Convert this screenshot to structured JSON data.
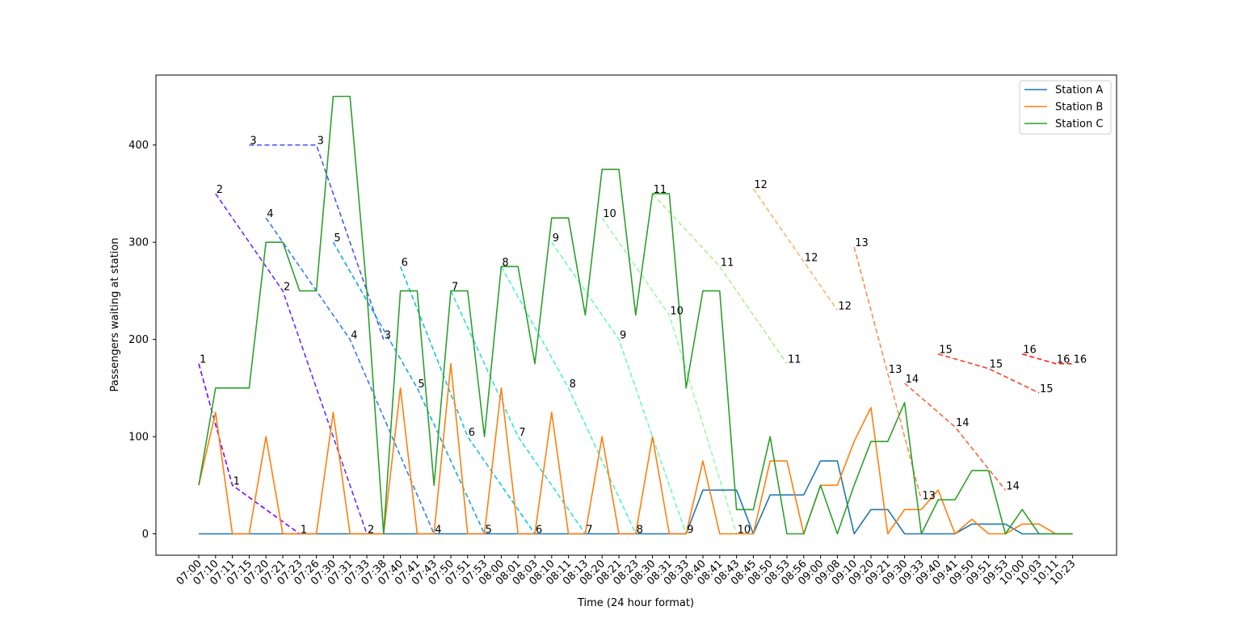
{
  "chart_data": {
    "type": "line",
    "xlabel": "Time (24 hour format)",
    "ylabel": "Passengers waiting at station",
    "ylim": [
      -22,
      472
    ],
    "y_ticks": [
      0,
      100,
      200,
      300,
      400
    ],
    "categories": [
      "07:00",
      "07:10",
      "07:11",
      "07:15",
      "07:20",
      "07:21",
      "07:23",
      "07:26",
      "07:30",
      "07:31",
      "07:33",
      "07:38",
      "07:40",
      "07:41",
      "07:43",
      "07:50",
      "07:51",
      "07:53",
      "08:00",
      "08:01",
      "08:03",
      "08:10",
      "08:11",
      "08:13",
      "08:20",
      "08:21",
      "08:23",
      "08:30",
      "08:31",
      "08:33",
      "08:40",
      "08:41",
      "08:43",
      "08:45",
      "08:50",
      "08:53",
      "08:56",
      "09:00",
      "09:08",
      "09:10",
      "09:20",
      "09:21",
      "09:30",
      "09:33",
      "09:40",
      "09:41",
      "09:50",
      "09:51",
      "09:53",
      "10:00",
      "10:03",
      "10:11",
      "10:23"
    ],
    "legend_position": "top-right",
    "grid": false,
    "series": [
      {
        "name": "Station A",
        "color": "#1f77b4",
        "values": [
          0,
          0,
          0,
          0,
          0,
          0,
          0,
          0,
          0,
          0,
          0,
          0,
          0,
          0,
          0,
          0,
          0,
          0,
          0,
          0,
          0,
          0,
          0,
          0,
          0,
          0,
          0,
          0,
          0,
          0,
          45,
          45,
          45,
          0,
          40,
          40,
          40,
          75,
          75,
          0,
          25,
          25,
          0,
          0,
          0,
          0,
          10,
          10,
          10,
          0,
          0,
          0,
          0
        ]
      },
      {
        "name": "Station B",
        "color": "#ff7f0e",
        "values": [
          50,
          125,
          0,
          0,
          100,
          0,
          0,
          0,
          125,
          0,
          0,
          0,
          150,
          0,
          0,
          175,
          0,
          0,
          150,
          0,
          0,
          125,
          0,
          0,
          100,
          0,
          0,
          100,
          0,
          0,
          75,
          0,
          0,
          0,
          75,
          75,
          0,
          50,
          50,
          95,
          130,
          0,
          25,
          25,
          45,
          0,
          15,
          0,
          0,
          10,
          10,
          0,
          0
        ]
      },
      {
        "name": "Station C",
        "color": "#2ca02c",
        "values": [
          50,
          150,
          150,
          150,
          300,
          300,
          250,
          250,
          450,
          450,
          250,
          0,
          250,
          250,
          50,
          250,
          250,
          100,
          275,
          275,
          175,
          325,
          325,
          225,
          375,
          375,
          225,
          350,
          350,
          150,
          250,
          250,
          25,
          25,
          100,
          0,
          0,
          50,
          0,
          50,
          95,
          95,
          135,
          0,
          35,
          35,
          65,
          65,
          0,
          25,
          0,
          0,
          0
        ]
      }
    ],
    "trains": [
      {
        "id": "1",
        "color": "#7f00ff",
        "points": [
          [
            0,
            175,
            "1"
          ],
          [
            2,
            50,
            "1"
          ],
          [
            6,
            0,
            "1"
          ]
        ]
      },
      {
        "id": "2",
        "color": "#6a2cfe",
        "points": [
          [
            1,
            350,
            "2"
          ],
          [
            5,
            250,
            "2"
          ],
          [
            10,
            0,
            "2"
          ]
        ]
      },
      {
        "id": "3",
        "color": "#4a57fb",
        "points": [
          [
            3,
            400,
            "3"
          ],
          [
            7,
            400,
            "3"
          ],
          [
            11,
            200,
            "3"
          ]
        ]
      },
      {
        "id": "4",
        "color": "#307ef5",
        "points": [
          [
            4,
            325,
            "4"
          ],
          [
            9,
            200,
            "4"
          ],
          [
            14,
            0,
            "4"
          ]
        ]
      },
      {
        "id": "5",
        "color": "#16a2ee",
        "points": [
          [
            8,
            300,
            "5"
          ],
          [
            13,
            150,
            "5"
          ],
          [
            17,
            0,
            "5"
          ]
        ]
      },
      {
        "id": "6",
        "color": "#14c2e3",
        "points": [
          [
            12,
            275,
            "6"
          ],
          [
            16,
            100,
            "6"
          ],
          [
            20,
            0,
            "6"
          ]
        ]
      },
      {
        "id": "7",
        "color": "#2ededa",
        "points": [
          [
            15,
            250,
            "7"
          ],
          [
            19,
            100,
            "7"
          ],
          [
            23,
            0,
            "7"
          ]
        ]
      },
      {
        "id": "8",
        "color": "#4bf2ce",
        "points": [
          [
            18,
            275,
            "8"
          ],
          [
            22,
            150,
            "8"
          ],
          [
            26,
            0,
            "8"
          ]
        ]
      },
      {
        "id": "9",
        "color": "#64fcbc",
        "points": [
          [
            21,
            300,
            "9"
          ],
          [
            25,
            200,
            "9"
          ],
          [
            29,
            0,
            "9"
          ]
        ]
      },
      {
        "id": "10",
        "color": "#98fca3",
        "points": [
          [
            24,
            325,
            "10"
          ],
          [
            28,
            225,
            "10"
          ],
          [
            32,
            0,
            "10"
          ]
        ]
      },
      {
        "id": "11",
        "color": "#b5ee8b",
        "points": [
          [
            27,
            350,
            "11"
          ],
          [
            31,
            275,
            "11"
          ],
          [
            35,
            175,
            "11"
          ]
        ]
      },
      {
        "id": "12",
        "color": "#f5b86a",
        "points": [
          [
            33,
            355,
            "12"
          ],
          [
            36,
            280,
            "12"
          ],
          [
            38,
            230,
            "12"
          ]
        ]
      },
      {
        "id": "13",
        "color": "#ff8c4b",
        "points": [
          [
            39,
            295,
            "13"
          ],
          [
            41,
            165,
            "13"
          ],
          [
            43,
            35,
            "13"
          ]
        ]
      },
      {
        "id": "14",
        "color": "#ff6136",
        "points": [
          [
            42,
            155,
            "14"
          ],
          [
            45,
            110,
            "14"
          ],
          [
            48,
            45,
            "14"
          ]
        ]
      },
      {
        "id": "15",
        "color": "#ff3a24",
        "points": [
          [
            44,
            185,
            "15"
          ],
          [
            47,
            170,
            "15"
          ],
          [
            50,
            145,
            "15"
          ]
        ]
      },
      {
        "id": "16",
        "color": "#ff1a12",
        "points": [
          [
            49,
            185,
            "16"
          ],
          [
            51,
            175,
            "16"
          ],
          [
            52,
            175,
            "16"
          ]
        ]
      }
    ]
  }
}
